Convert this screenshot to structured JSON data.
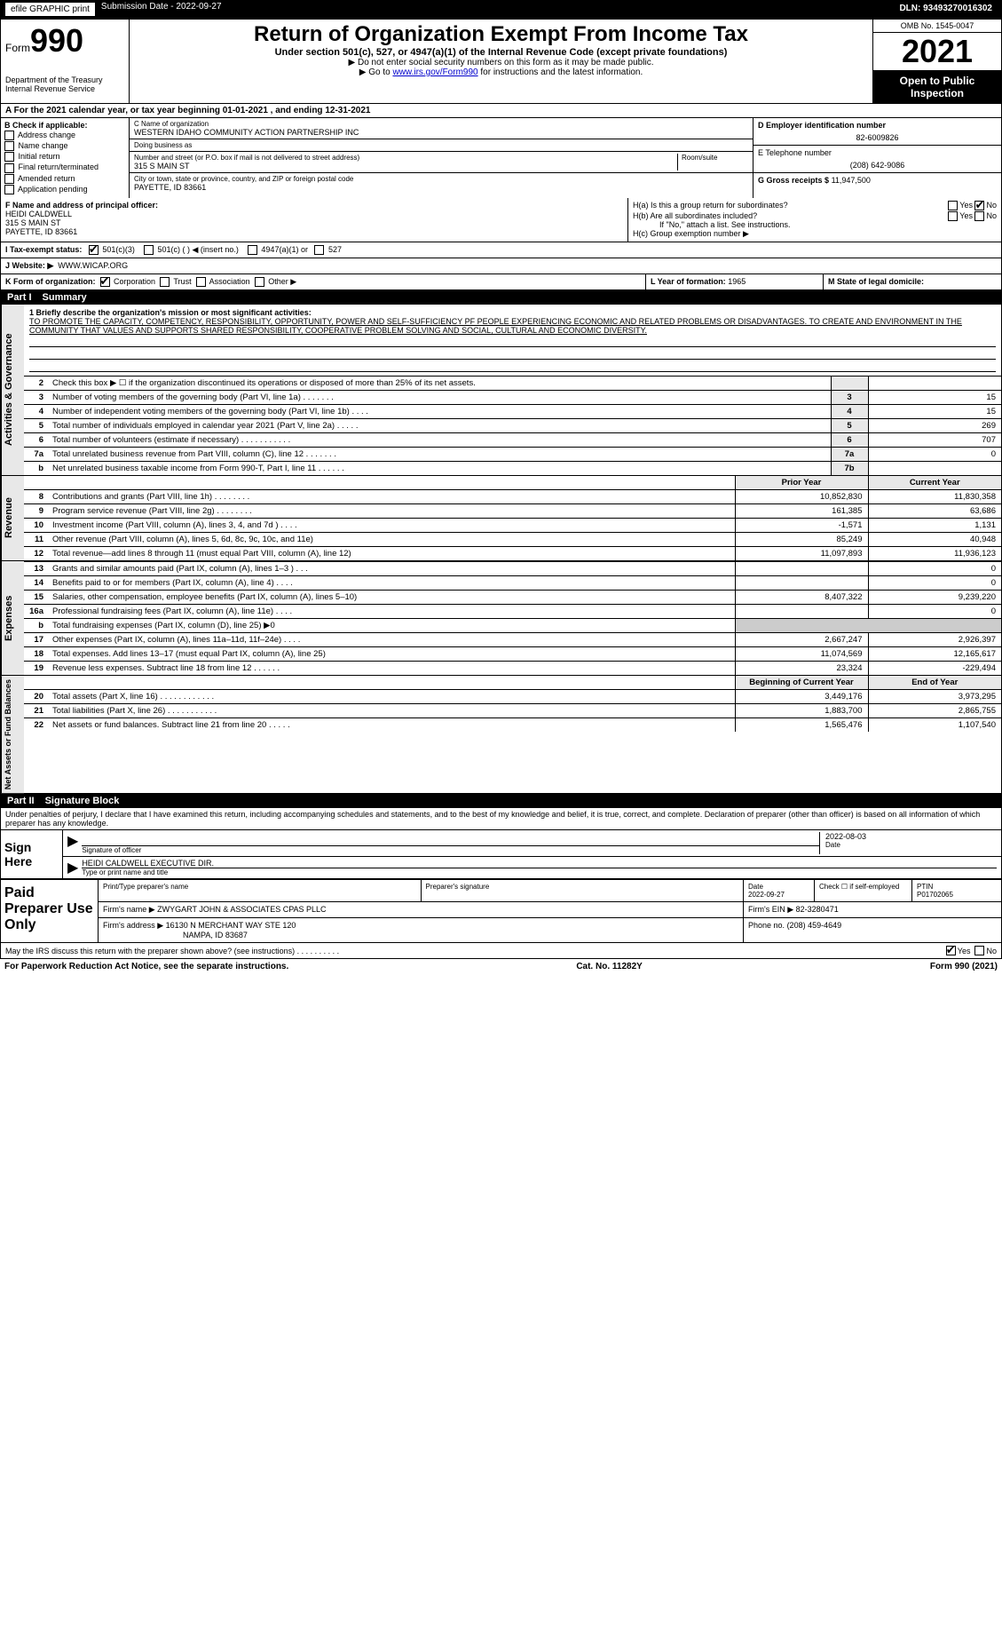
{
  "top": {
    "efile": "efile GRAPHIC print",
    "submission_label": "Submission Date - ",
    "submission_date": "2022-09-27",
    "dln_label": "DLN: ",
    "dln": "93493270016302"
  },
  "header": {
    "form_word": "Form",
    "form_num": "990",
    "dept": "Department of the Treasury",
    "irs": "Internal Revenue Service",
    "title": "Return of Organization Exempt From Income Tax",
    "subtitle": "Under section 501(c), 527, or 4947(a)(1) of the Internal Revenue Code (except private foundations)",
    "note1": "▶ Do not enter social security numbers on this form as it may be made public.",
    "note2_pre": "▶ Go to ",
    "note2_link": "www.irs.gov/Form990",
    "note2_post": " for instructions and the latest information.",
    "omb": "OMB No. 1545-0047",
    "year": "2021",
    "open": "Open to Public Inspection"
  },
  "period": "A For the 2021 calendar year, or tax year beginning 01-01-2021    , and ending 12-31-2021",
  "box_b": {
    "title": "B Check if applicable:",
    "items": [
      "Address change",
      "Name change",
      "Initial return",
      "Final return/terminated",
      "Amended return",
      "Application pending"
    ]
  },
  "box_c": {
    "label_name": "C Name of organization",
    "name": "WESTERN IDAHO COMMUNITY ACTION PARTNERSHIP INC",
    "dba_label": "Doing business as",
    "dba": "",
    "addr_label": "Number and street (or P.O. box if mail is not delivered to street address)",
    "room_label": "Room/suite",
    "addr": "315 S MAIN ST",
    "city_label": "City or town, state or province, country, and ZIP or foreign postal code",
    "city": "PAYETTE, ID  83661"
  },
  "box_d": {
    "label": "D Employer identification number",
    "val": "82-6009826"
  },
  "box_e": {
    "label": "E Telephone number",
    "val": "(208) 642-9086"
  },
  "box_g": {
    "label": "G Gross receipts $",
    "val": "11,947,500"
  },
  "box_f": {
    "label": "F Name and address of principal officer:",
    "name": "HEIDI CALDWELL",
    "addr1": "315 S MAIN ST",
    "addr2": "PAYETTE, ID  83661"
  },
  "box_h": {
    "a": "H(a)  Is this a group return for subordinates?",
    "a_yes": "Yes",
    "a_no": "No",
    "b": "H(b)  Are all subordinates included?",
    "b_yes": "Yes",
    "b_no": "No",
    "b_note": "If \"No,\" attach a list. See instructions.",
    "c": "H(c)  Group exemption number ▶"
  },
  "row_i": {
    "label": "I  Tax-exempt status:",
    "opts": [
      "501(c)(3)",
      "501(c) (   ) ◀ (insert no.)",
      "4947(a)(1) or",
      "527"
    ]
  },
  "row_j": {
    "label": "J  Website: ▶",
    "val": "WWW.WICAP.ORG"
  },
  "row_k": {
    "label": "K Form of organization:",
    "opts": [
      "Corporation",
      "Trust",
      "Association",
      "Other ▶"
    ],
    "l_label": "L Year of formation:",
    "l_val": "1965",
    "m_label": "M State of legal domicile:",
    "m_val": ""
  },
  "part1": {
    "num": "Part I",
    "title": "Summary"
  },
  "mission": {
    "q": "1  Briefly describe the organization's mission or most significant activities:",
    "text": "TO PROMOTE THE CAPACITY, COMPETENCY, RESPONSIBILITY, OPPORTUNITY, POWER AND SELF-SUFFICIENCY PF PEOPLE EXPERIENCING ECONOMIC AND RELATED PROBLEMS OR DISADVANTAGES. TO CREATE AND ENVIRONMENT IN THE COMMUNITY THAT VALUES AND SUPPORTS SHARED RESPONSIBILITY, COOPERATIVE PROBLEM SOLVING AND SOCIAL, CULTURAL AND ECONOMIC DIVERSITY."
  },
  "gov_lines": [
    {
      "n": "2",
      "d": "Check this box ▶ ☐  if the organization discontinued its operations or disposed of more than 25% of its net assets.",
      "box": "",
      "amt": ""
    },
    {
      "n": "3",
      "d": "Number of voting members of the governing body (Part VI, line 1a)   .    .    .    .    .    .    .",
      "box": "3",
      "amt": "15"
    },
    {
      "n": "4",
      "d": "Number of independent voting members of the governing body (Part VI, line 1b)    .    .    .    .",
      "box": "4",
      "amt": "15"
    },
    {
      "n": "5",
      "d": "Total number of individuals employed in calendar year 2021 (Part V, line 2a)   .    .    .    .    .",
      "box": "5",
      "amt": "269"
    },
    {
      "n": "6",
      "d": "Total number of volunteers (estimate if necessary)    .    .    .    .    .    .    .    .    .    .    .",
      "box": "6",
      "amt": "707"
    },
    {
      "n": "7a",
      "d": "Total unrelated business revenue from Part VIII, column (C), line 12   .    .    .    .    .    .    .",
      "box": "7a",
      "amt": "0"
    },
    {
      "n": "b",
      "d": "Net unrelated business taxable income from Form 990-T, Part I, line 11    .    .    .    .    .    .",
      "box": "7b",
      "amt": ""
    }
  ],
  "rev_hdr": {
    "prior": "Prior Year",
    "curr": "Current Year"
  },
  "rev_lines": [
    {
      "n": "8",
      "d": "Contributions and grants (Part VIII, line 1h)   .    .    .    .    .    .    .    .",
      "p": "10,852,830",
      "c": "11,830,358"
    },
    {
      "n": "9",
      "d": "Program service revenue (Part VIII, line 2g)   .    .    .    .    .    .    .    .",
      "p": "161,385",
      "c": "63,686"
    },
    {
      "n": "10",
      "d": "Investment income (Part VIII, column (A), lines 3, 4, and 7d )    .    .    .    .",
      "p": "-1,571",
      "c": "1,131"
    },
    {
      "n": "11",
      "d": "Other revenue (Part VIII, column (A), lines 5, 6d, 8c, 9c, 10c, and 11e)",
      "p": "85,249",
      "c": "40,948"
    },
    {
      "n": "12",
      "d": "Total revenue—add lines 8 through 11 (must equal Part VIII, column (A), line 12)",
      "p": "11,097,893",
      "c": "11,936,123"
    }
  ],
  "exp_lines": [
    {
      "n": "13",
      "d": "Grants and similar amounts paid (Part IX, column (A), lines 1–3 )   .    .    .",
      "p": "",
      "c": "0"
    },
    {
      "n": "14",
      "d": "Benefits paid to or for members (Part IX, column (A), line 4)   .    .    .    .",
      "p": "",
      "c": "0"
    },
    {
      "n": "15",
      "d": "Salaries, other compensation, employee benefits (Part IX, column (A), lines 5–10)",
      "p": "8,407,322",
      "c": "9,239,220"
    },
    {
      "n": "16a",
      "d": "Professional fundraising fees (Part IX, column (A), line 11e)   .    .    .    .",
      "p": "",
      "c": "0"
    },
    {
      "n": "b",
      "d": "Total fundraising expenses (Part IX, column (D), line 25) ▶0",
      "p": "—",
      "c": "—"
    },
    {
      "n": "17",
      "d": "Other expenses (Part IX, column (A), lines 11a–11d, 11f–24e)    .    .    .    .",
      "p": "2,667,247",
      "c": "2,926,397"
    },
    {
      "n": "18",
      "d": "Total expenses. Add lines 13–17 (must equal Part IX, column (A), line 25)",
      "p": "11,074,569",
      "c": "12,165,617"
    },
    {
      "n": "19",
      "d": "Revenue less expenses. Subtract line 18 from line 12   .    .    .    .    .    .",
      "p": "23,324",
      "c": "-229,494"
    }
  ],
  "na_hdr": {
    "beg": "Beginning of Current Year",
    "end": "End of Year"
  },
  "na_lines": [
    {
      "n": "20",
      "d": "Total assets (Part X, line 16)   .    .    .    .    .    .    .    .    .    .    .    .",
      "p": "3,449,176",
      "c": "3,973,295"
    },
    {
      "n": "21",
      "d": "Total liabilities (Part X, line 26)    .    .    .    .    .    .    .    .    .    .    .",
      "p": "1,883,700",
      "c": "2,865,755"
    },
    {
      "n": "22",
      "d": "Net assets or fund balances. Subtract line 21 from line 20    .    .    .    .    .",
      "p": "1,565,476",
      "c": "1,107,540"
    }
  ],
  "vlabels": {
    "gov": "Activities & Governance",
    "rev": "Revenue",
    "exp": "Expenses",
    "na": "Net Assets or Fund Balances"
  },
  "part2": {
    "num": "Part II",
    "title": "Signature Block"
  },
  "sig": {
    "penalty": "Under penalties of perjury, I declare that I have examined this return, including accompanying schedules and statements, and to the best of my knowledge and belief, it is true, correct, and complete. Declaration of preparer (other than officer) is based on all information of which preparer has any knowledge.",
    "sign_here": "Sign Here",
    "sig_officer": "Signature of officer",
    "date_lbl": "Date",
    "date": "2022-08-03",
    "name": "HEIDI CALDWELL  EXECUTIVE DIR.",
    "name_lbl": "Type or print name and title"
  },
  "prep": {
    "title": "Paid Preparer Use Only",
    "h1": "Print/Type preparer's name",
    "h2": "Preparer's signature",
    "h3": "Date",
    "h4": "Check ☐ if self-employed",
    "h5": "PTIN",
    "date": "2022-09-27",
    "ptin": "P01702065",
    "firm_lbl": "Firm's name    ▶",
    "firm": "ZWYGART JOHN & ASSOCIATES CPAS PLLC",
    "ein_lbl": "Firm's EIN ▶",
    "ein": "82-3280471",
    "addr_lbl": "Firm's address ▶",
    "addr1": "16130 N MERCHANT WAY STE 120",
    "addr2": "NAMPA, ID  83687",
    "phone_lbl": "Phone no.",
    "phone": "(208) 459-4649"
  },
  "footer": {
    "discuss": "May the IRS discuss this return with the preparer shown above? (see instructions)    .    .    .    .    .    .    .    .    .    .",
    "yes": "Yes",
    "no": "No",
    "pra": "For Paperwork Reduction Act Notice, see the separate instructions.",
    "cat": "Cat. No. 11282Y",
    "form": "Form 990 (2021)"
  }
}
